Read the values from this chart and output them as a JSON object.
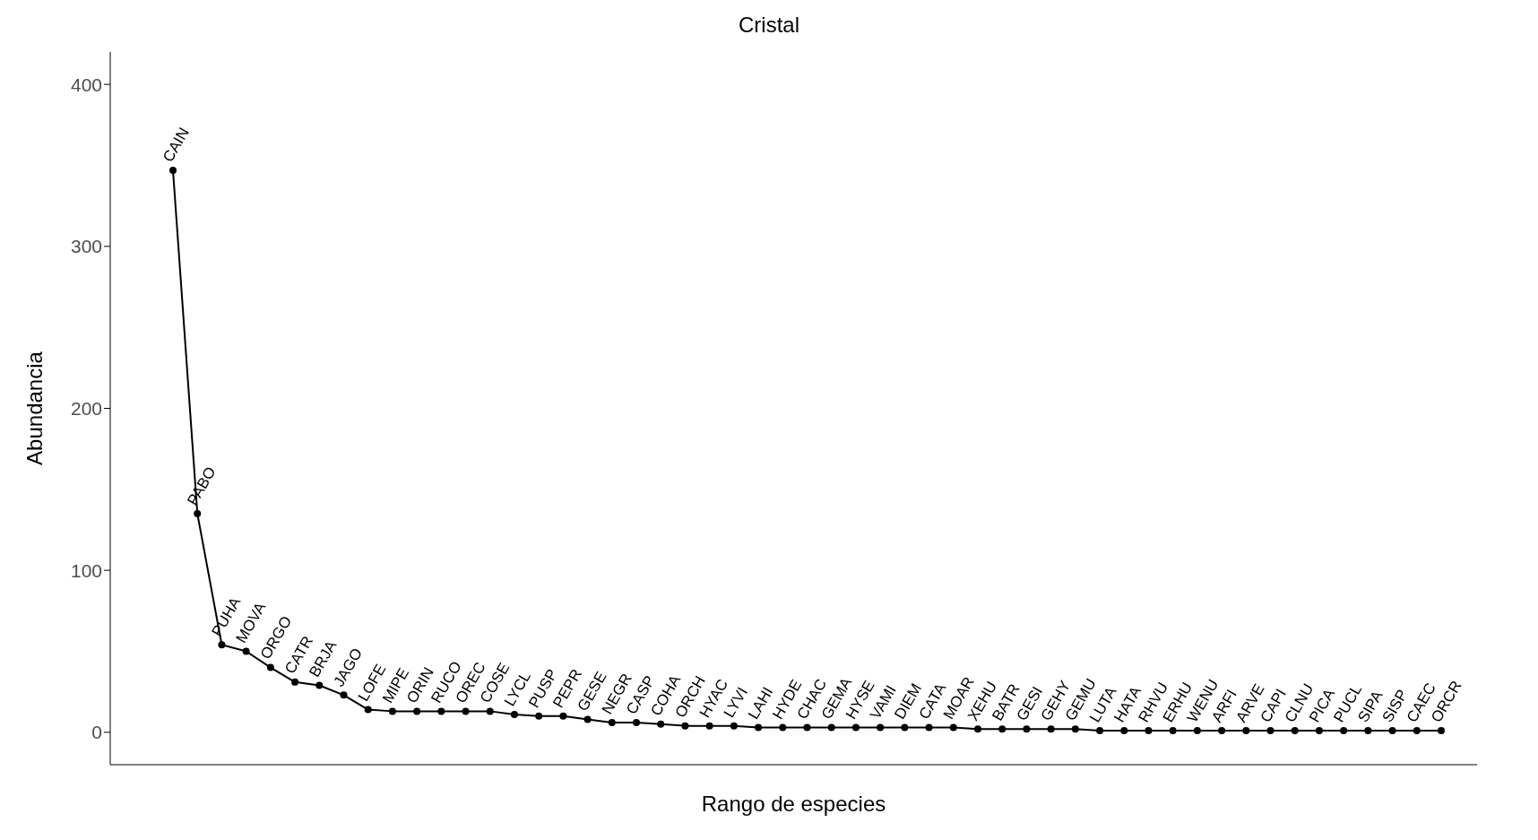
{
  "chart_data": {
    "type": "line",
    "title": "Cristal",
    "xlabel": "Rango de especies",
    "ylabel": "Abundancia",
    "categories": [
      null,
      null,
      null,
      null,
      null,
      null,
      null,
      null,
      null,
      null,
      null,
      null,
      null,
      null,
      null,
      null,
      null,
      null,
      null,
      null,
      null,
      null,
      null,
      null,
      null,
      null,
      null,
      null,
      null,
      null,
      null,
      null,
      null,
      null,
      null,
      null,
      null,
      null,
      null,
      null,
      null,
      null,
      null,
      null,
      null,
      null,
      null,
      null,
      null,
      null,
      null,
      null,
      null
    ],
    "series": [
      {
        "color": "#000000",
        "values": [
          347,
          135,
          54,
          50,
          40,
          31,
          29,
          23,
          14,
          13,
          13,
          13,
          13,
          13,
          11,
          10,
          10,
          8,
          6,
          6,
          5,
          4,
          4,
          4,
          3,
          3,
          3,
          3,
          3,
          3,
          3,
          3,
          3,
          2,
          2,
          2,
          2,
          2,
          1,
          1,
          1,
          1,
          1,
          1,
          1,
          1,
          1,
          1,
          1,
          1,
          1,
          1,
          1
        ],
        "value_labels": [
          "CAIN",
          "PABO",
          "PUHA",
          "MOVA",
          "ORGO",
          "CATR",
          "BRJA",
          "JAGO",
          "LOFE",
          "MIPE",
          "ORIN",
          "RUCO",
          "OREC",
          "COSE",
          "LYCL",
          "PUSP",
          "PEPR",
          "GESE",
          "NEGR",
          "CASP",
          "COHA",
          "ORCH",
          "HYAC",
          "LYVI",
          "LAHI",
          "HYDE",
          "CHAC",
          "GEMA",
          "HYSE",
          "VAMI",
          "DIEM",
          "CATA",
          "MOAR",
          "XEHU",
          "BATR",
          "GESI",
          "GEHY",
          "GEMU",
          "LUTA",
          "HATA",
          "RHVU",
          "ERHU",
          "WENU",
          "ARFI",
          "ARVE",
          "CAPI",
          "CLNU",
          "PICA",
          "PUCL",
          "SIPA",
          "SISP",
          "CAEC",
          "ORCR"
        ]
      }
    ],
    "ylim": [
      -20,
      420
    ],
    "yticks": [
      0,
      100,
      200,
      300,
      400
    ],
    "tick_labels": "y",
    "marker": "circle",
    "line_style": "solid"
  }
}
